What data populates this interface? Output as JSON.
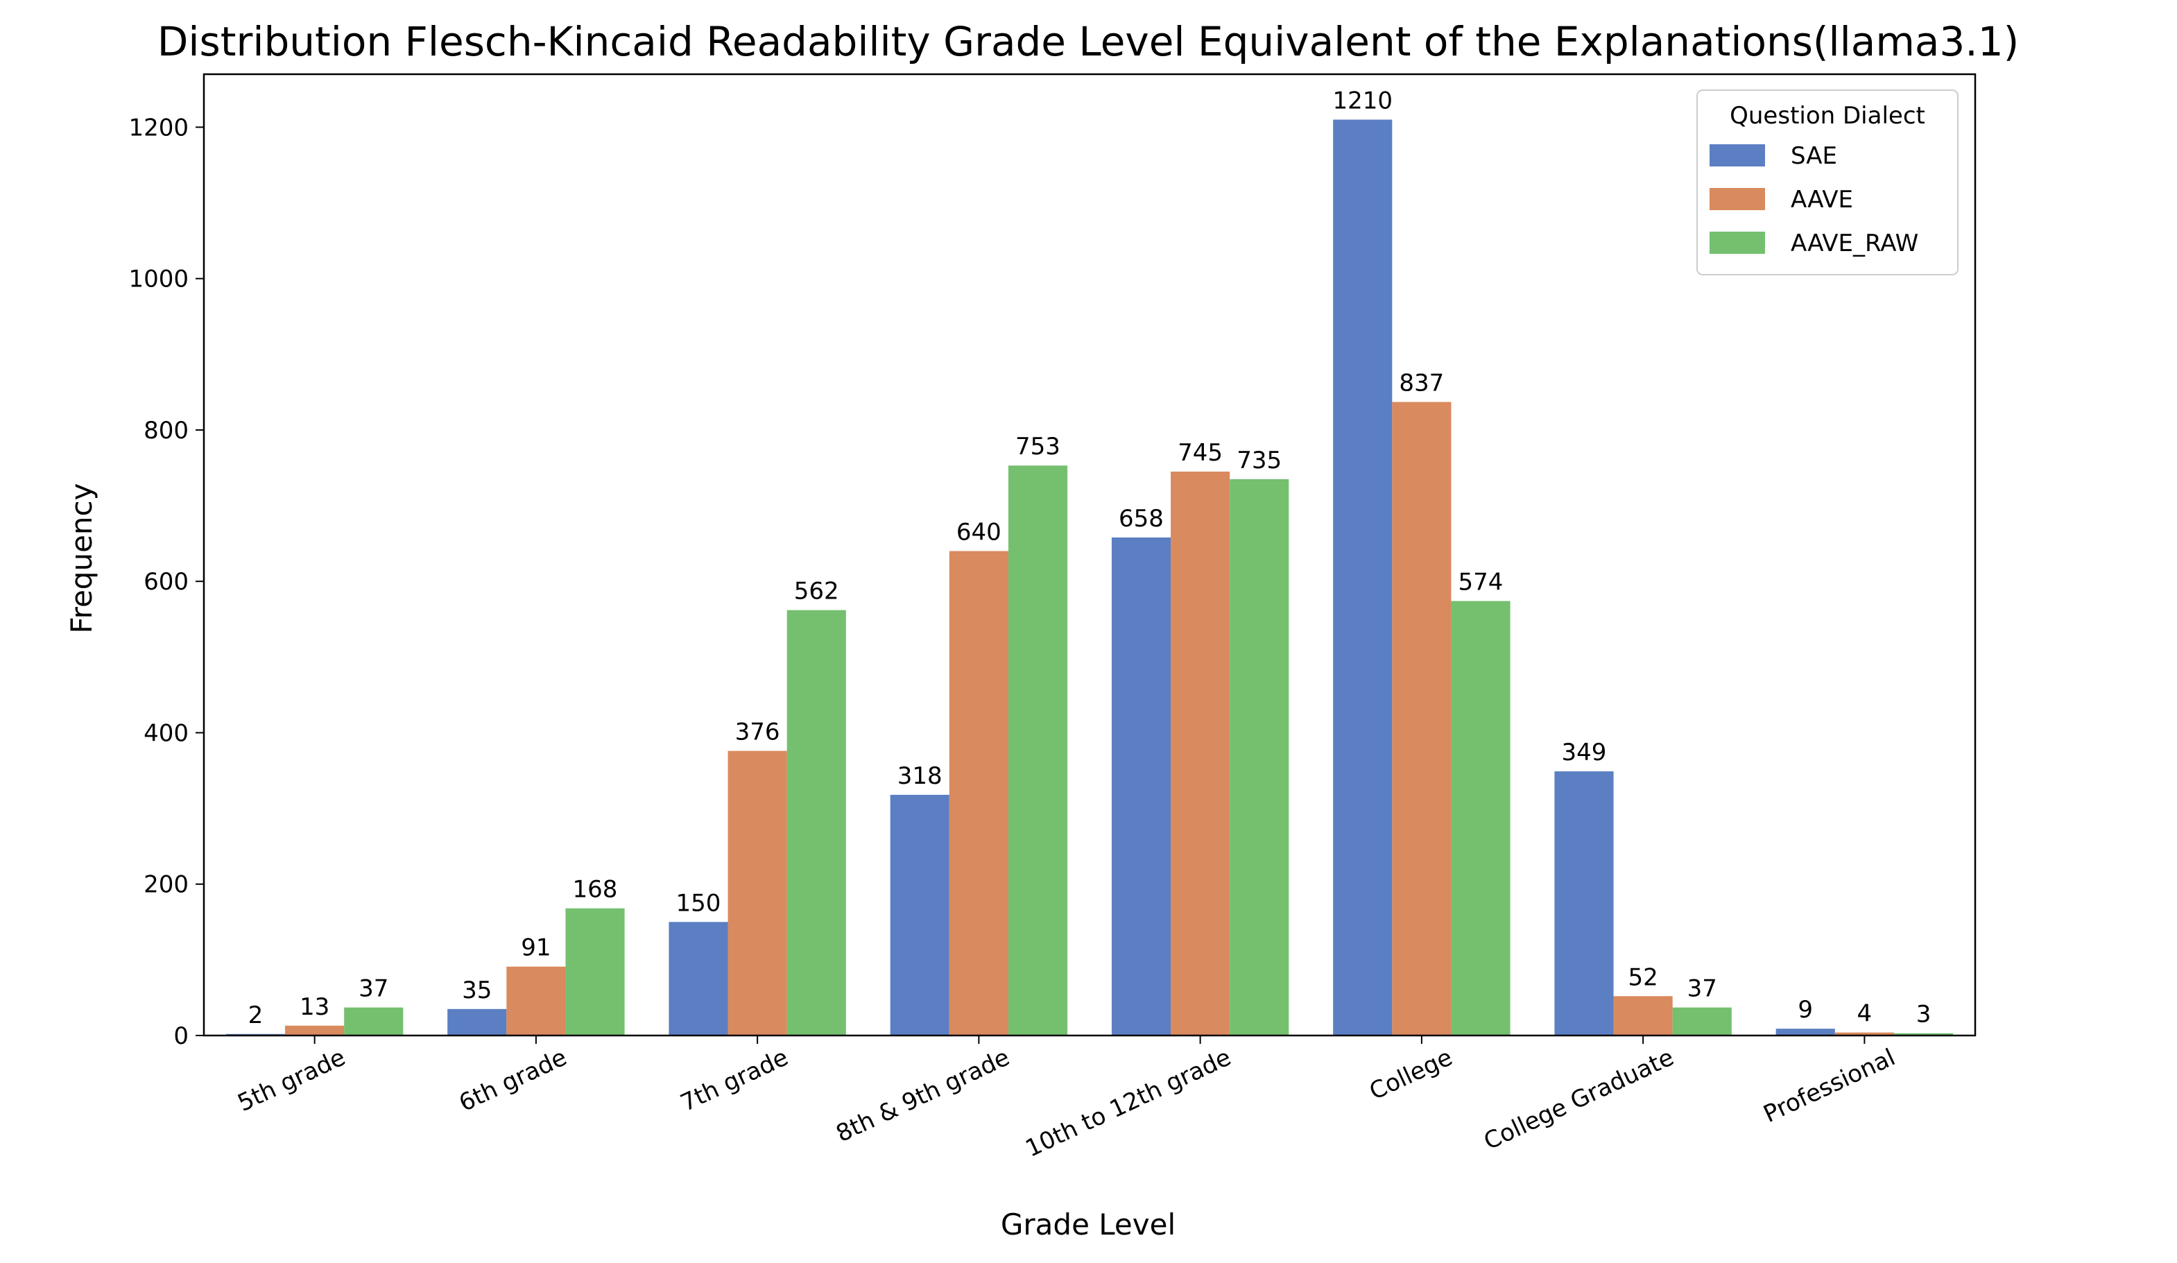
{
  "chart_data": {
    "type": "bar",
    "title": "Distribution Flesch-Kincaid Readability Grade Level Equivalent of the Explanations(llama3.1)",
    "xlabel": "Grade Level",
    "ylabel": "Frequency",
    "categories": [
      "5th grade",
      "6th grade",
      "7th grade",
      "8th & 9th grade",
      "10th to 12th grade",
      "College",
      "College Graduate",
      "Professional"
    ],
    "series": [
      {
        "name": "SAE",
        "color": "#5b7fc2",
        "values": [
          2,
          35,
          150,
          318,
          658,
          1210,
          349,
          9
        ]
      },
      {
        "name": "AAVE",
        "color": "#d98a5e",
        "values": [
          13,
          91,
          376,
          640,
          745,
          837,
          52,
          4
        ]
      },
      {
        "name": "AAVE_RAW",
        "color": "#74c06f",
        "values": [
          37,
          168,
          562,
          753,
          735,
          574,
          37,
          3
        ]
      }
    ],
    "yticks": [
      0,
      200,
      400,
      600,
      800,
      1000,
      1200
    ],
    "ylim": [
      0,
      1270
    ],
    "legend": {
      "title": "Question Dialect",
      "placement": "top-right"
    },
    "grid": false
  }
}
